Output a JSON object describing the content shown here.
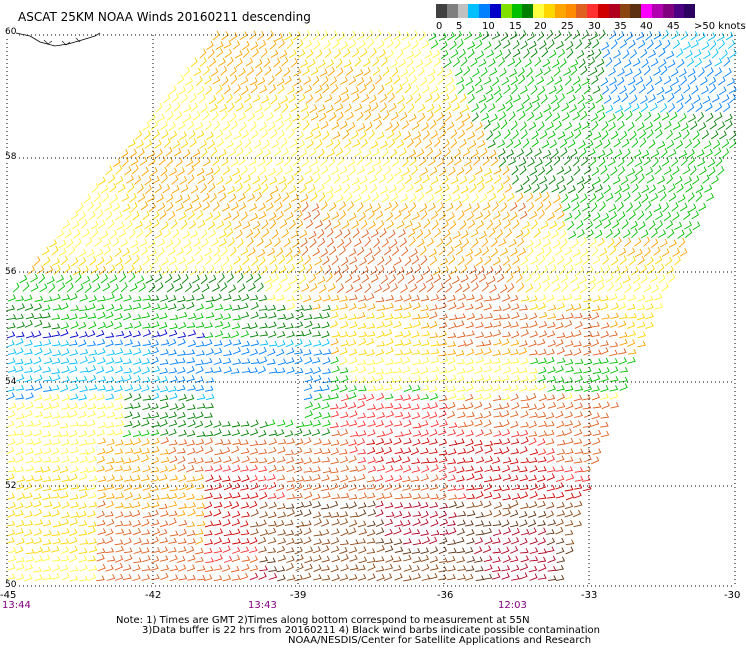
{
  "title": "ASCAT 25KM NOAA Winds 20160211 descending",
  "legend": {
    "labels": [
      "0",
      "5",
      "10",
      "15",
      "20",
      "25",
      "30",
      "35",
      "40",
      "45",
      ">50 knots"
    ],
    "colors": [
      "#404040",
      "#7f7f7f",
      "#c0c0c0",
      "#00bfff",
      "#0080ff",
      "#0000c8",
      "#80e000",
      "#00c000",
      "#008000",
      "#ffff40",
      "#ffd700",
      "#ffa500",
      "#ff8c00",
      "#e06020",
      "#ff3030",
      "#d00000",
      "#b00020",
      "#8b4513",
      "#5c3010",
      "#ff00ff",
      "#b000b0",
      "#800080",
      "#4b0082",
      "#2b0060"
    ]
  },
  "axes": {
    "lat_labels": [
      "60",
      "58",
      "56",
      "54",
      "52",
      "50"
    ],
    "lon_labels": [
      "-45",
      "-42",
      "-39",
      "-36",
      "-33",
      "-30"
    ],
    "time_labels": [
      "13:44",
      "13:43",
      "12:03"
    ]
  },
  "notes": [
    "Note: 1) Times are GMT 2)Times along bottom correspond to measurement at 55N",
    "3)Data buffer is 22 hrs from 20160211 4) Black wind barbs indicate possible contamination",
    "NOAA/NESDIS/Center for Satellite Applications and Research"
  ],
  "map": {
    "projection": "lat-lon",
    "lat_range": [
      50,
      60
    ],
    "lon_range": [
      -45,
      -30
    ],
    "grid": "dotted",
    "swath_shape": "parallelogram tilted right",
    "wind_regions": [
      {
        "area": "northern swath",
        "speed": "20-30 knots",
        "color_names": [
          "yellow",
          "orange"
        ]
      },
      {
        "area": "northeast edge",
        "speed": "10-20 knots",
        "color_names": [
          "green",
          "blue"
        ]
      },
      {
        "area": "band near 54N",
        "speed": "5-20 knots",
        "color_names": [
          "blue",
          "green"
        ]
      },
      {
        "area": "southern swath",
        "speed": "25-40 knots",
        "color_names": [
          "red",
          "brown",
          "orange"
        ]
      }
    ]
  }
}
